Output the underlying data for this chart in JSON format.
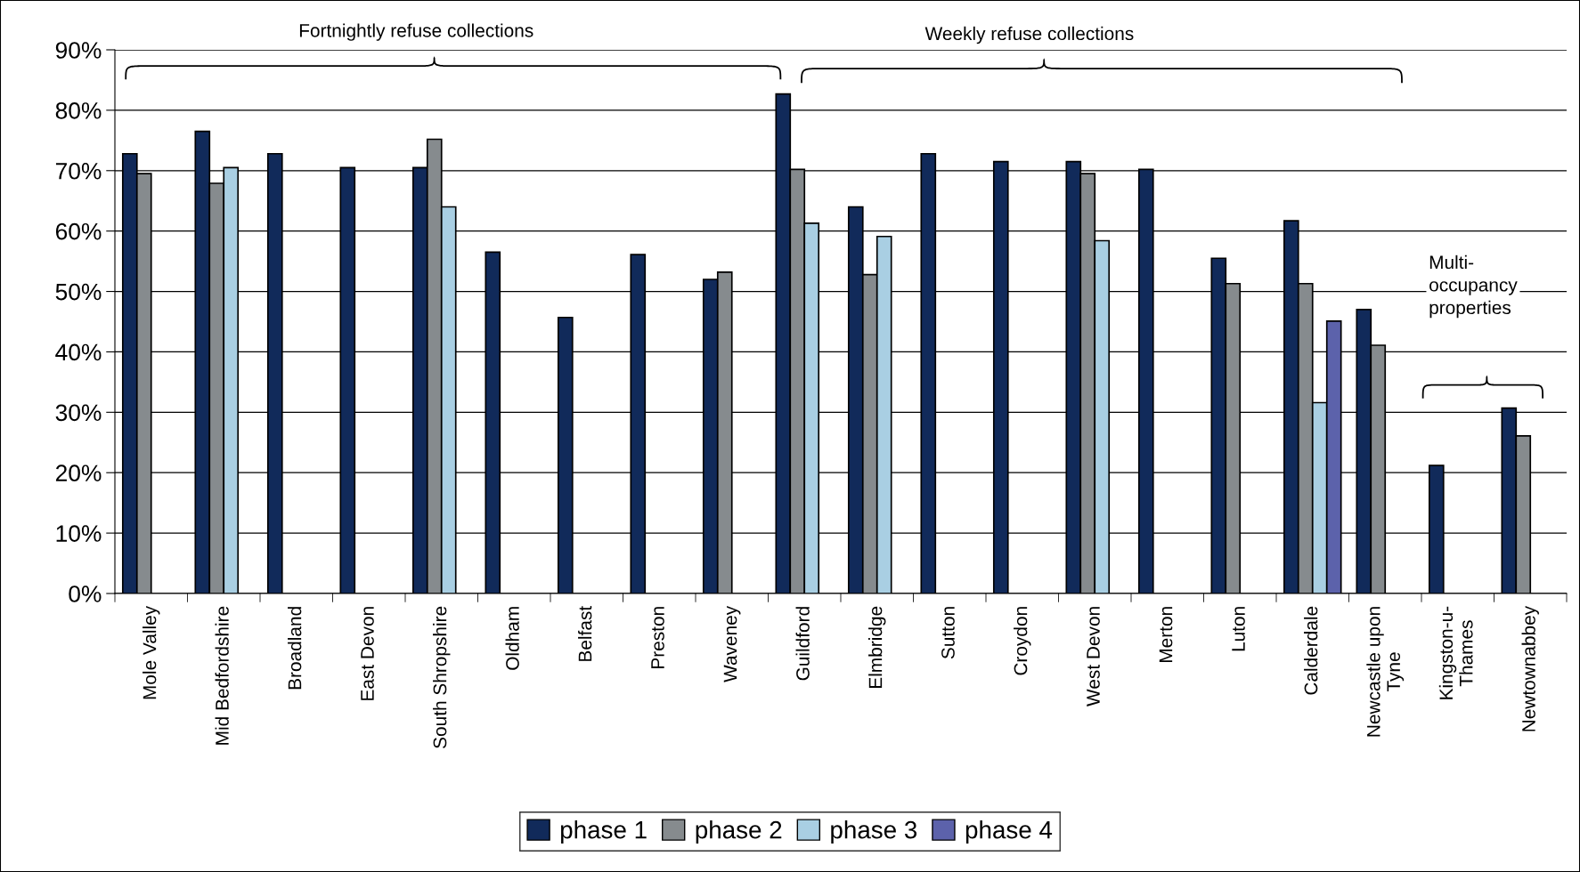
{
  "chart_data": {
    "type": "bar",
    "categories": [
      "Mole Valley",
      "Mid Bedfordshire",
      "Broadland",
      "East Devon",
      "South Shropshire",
      "Oldham",
      "Belfast",
      "Preston",
      "Waveney",
      "Guildford",
      "Elmbridge",
      "Sutton",
      "Croydon",
      "West Devon",
      "Merton",
      "Luton",
      "Calderdale",
      "Newcastle upon\nTyne",
      "Kingston-u-\nThames",
      "Newtownabbey"
    ],
    "series": [
      {
        "name": "phase 1",
        "color": "#112a5a",
        "values": [
          72.8,
          76.5,
          72.8,
          70.5,
          70.5,
          56.5,
          45.7,
          56.1,
          52.0,
          82.7,
          64.0,
          72.8,
          71.5,
          71.5,
          70.2,
          55.5,
          61.7,
          47.0,
          21.2,
          30.7
        ]
      },
      {
        "name": "phase 2",
        "color": "#868b8e",
        "values": [
          69.5,
          67.9,
          null,
          null,
          75.2,
          null,
          null,
          null,
          53.2,
          70.2,
          52.8,
          null,
          null,
          69.5,
          null,
          51.3,
          51.3,
          41.1,
          null,
          26.1
        ]
      },
      {
        "name": "phase 3",
        "color": "#a9cfe3",
        "values": [
          null,
          70.5,
          null,
          null,
          64.0,
          null,
          null,
          null,
          null,
          61.3,
          59.1,
          null,
          null,
          58.4,
          null,
          null,
          31.6,
          null,
          null,
          null
        ]
      },
      {
        "name": "phase 4",
        "color": "#5c62ab",
        "values": [
          null,
          null,
          null,
          null,
          null,
          null,
          null,
          null,
          null,
          null,
          null,
          null,
          null,
          null,
          null,
          null,
          45.1,
          null,
          null,
          null
        ]
      }
    ],
    "ylim": [
      0,
      90
    ],
    "yticks": [
      {
        "value": 0,
        "label": "0%"
      },
      {
        "value": 10,
        "label": "10%"
      },
      {
        "value": 20,
        "label": "20%"
      },
      {
        "value": 30,
        "label": "30%"
      },
      {
        "value": 40,
        "label": "40%"
      },
      {
        "value": 50,
        "label": "50%"
      },
      {
        "value": 60,
        "label": "60%"
      },
      {
        "value": 70,
        "label": "70%"
      },
      {
        "value": 80,
        "label": "80%"
      },
      {
        "value": 90,
        "label": "90%"
      }
    ],
    "grid": "y",
    "legend": "bottom",
    "annotations": [
      "Fortnightly refuse collections",
      "Weekly refuse collections",
      "Multi-\noccupancy\nproperties"
    ]
  }
}
